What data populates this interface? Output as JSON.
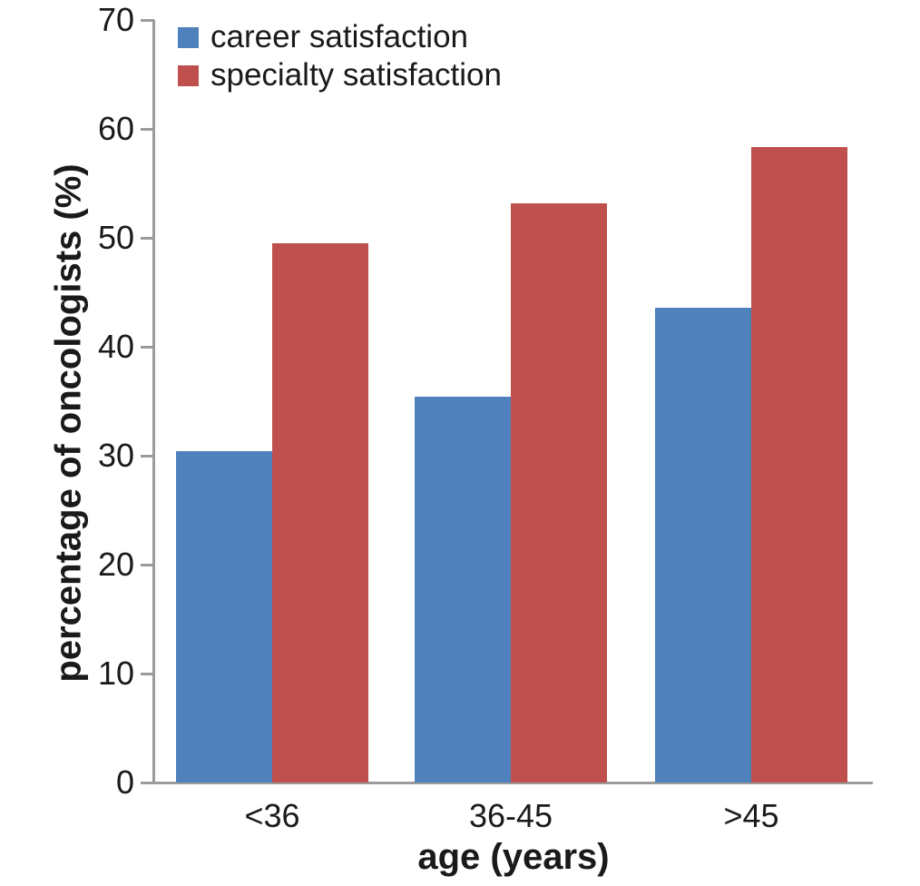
{
  "chart_data": {
    "type": "bar",
    "title": "",
    "xlabel": "age (years)",
    "ylabel": "percentage of oncologists (%)",
    "categories": [
      "<36",
      "36-45",
      ">45"
    ],
    "series": [
      {
        "name": "career satisfaction",
        "color": "#4f81bd",
        "values": [
          30.4,
          35.4,
          43.6
        ]
      },
      {
        "name": "specialty satisfaction",
        "color": "#c0504d",
        "values": [
          49.5,
          53.2,
          58.3
        ]
      }
    ],
    "ylim": [
      0,
      70
    ],
    "yticks": [
      0,
      10,
      20,
      30,
      40,
      50,
      60,
      70
    ],
    "legend_position": "top-left",
    "grid": false,
    "axis_color": "#9b9b9b",
    "text_color": "#1a1a1a"
  }
}
